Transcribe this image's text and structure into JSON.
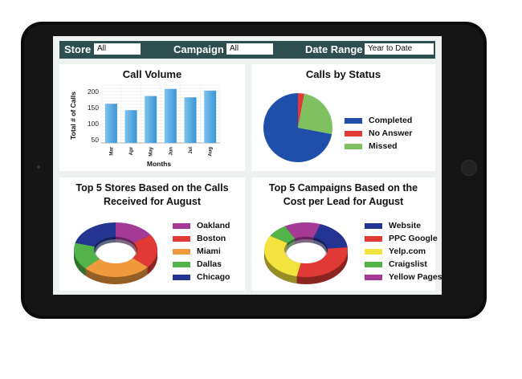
{
  "filters": {
    "store_label": "Store",
    "store_value": "All",
    "campaign_label": "Campaign",
    "campaign_value": "All",
    "date_label": "Date Range",
    "date_value": "Year to Date"
  },
  "call_volume": {
    "chart_data": {
      "type": "bar",
      "title": "Call Volume",
      "xlabel": "Months",
      "ylabel": "Total # of Calls",
      "categories": [
        "Mar",
        "Apr",
        "May",
        "Jun",
        "Jul",
        "Aug"
      ],
      "values": [
        162,
        142,
        186,
        208,
        182,
        203
      ],
      "yticks": [
        50,
        100,
        150,
        200
      ],
      "ylim": [
        40,
        220
      ],
      "color": "#3a95d6"
    }
  },
  "calls_by_status": {
    "chart_data": {
      "type": "pie",
      "title": "Calls by Status",
      "labels": [
        "Completed",
        "No Answer",
        "Missed"
      ],
      "values": [
        72,
        3,
        25
      ],
      "colors": [
        "#1f4fab",
        "#e13a36",
        "#7fc160"
      ],
      "legend": "right"
    }
  },
  "top_stores": {
    "chart_data": {
      "type": "pie",
      "title_line1": "Top 5 Stores Based on the Calls",
      "title_line2": "Received for August",
      "labels": [
        "Oakland",
        "Boston",
        "Miami",
        "Dallas",
        "Chicago"
      ],
      "values": [
        16,
        20,
        27,
        16,
        21
      ],
      "colors": [
        "#a43a95",
        "#e13a36",
        "#ef9a3c",
        "#52b34b",
        "#233493"
      ],
      "legend": "right"
    }
  },
  "top_campaigns": {
    "chart_data": {
      "type": "pie",
      "title_line1": "Top 5 Campaigns Based on the",
      "title_line2": "Cost per Lead for August",
      "labels": [
        "Website",
        "PPC Google",
        "Yelp.com",
        "Craigslist",
        "Yellow Pages"
      ],
      "values": [
        18,
        30,
        30,
        8,
        14
      ],
      "colors": [
        "#233493",
        "#e13a36",
        "#f3e33f",
        "#52b34b",
        "#a43a95"
      ],
      "legend": "right"
    }
  }
}
